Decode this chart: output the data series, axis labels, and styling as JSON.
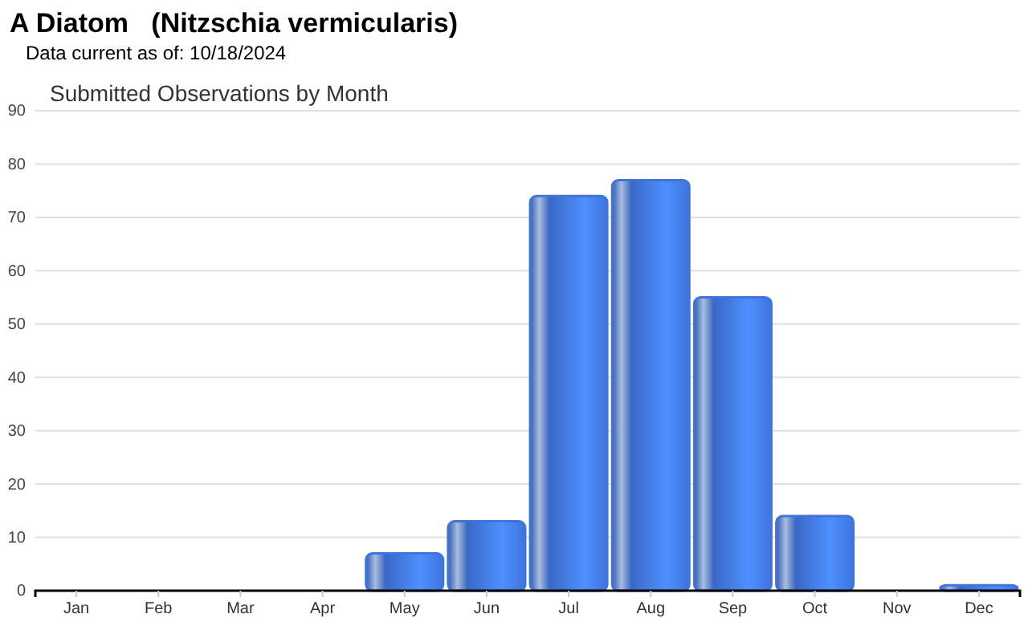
{
  "chart_data": {
    "type": "bar",
    "title": "A Diatom   (Nitzschia vermicularis)",
    "subtitle": "Data current as of: 10/18/2024",
    "annotations": [
      "Submitted Observations by Month"
    ],
    "categories": [
      "Jan",
      "Feb",
      "Mar",
      "Apr",
      "May",
      "Jun",
      "Jul",
      "Aug",
      "Sep",
      "Oct",
      "Nov",
      "Dec"
    ],
    "values": [
      0,
      0,
      0,
      0,
      7,
      13,
      74,
      77,
      55,
      14,
      0,
      1
    ],
    "color": "#3f74dc",
    "ylim": [
      0,
      90
    ],
    "yticks": [
      0,
      10,
      20,
      30,
      40,
      50,
      60,
      70,
      80,
      90
    ],
    "grid": "y"
  }
}
